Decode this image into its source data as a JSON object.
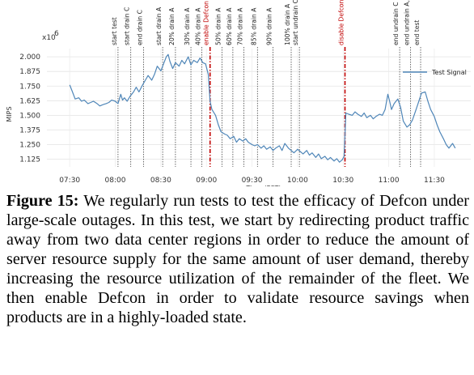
{
  "chart_data": {
    "type": "line",
    "xlabel": "Time (PST)",
    "ylabel": "MIPS",
    "y_multiplier": "x10",
    "y_multiplier_exp": "6",
    "ylim": [
      1.06,
      2.07
    ],
    "xlim": [
      7.25,
      11.9
    ],
    "x_ticks": [
      {
        "value": 7.5,
        "label": "07:30"
      },
      {
        "value": 8.0,
        "label": "08:00"
      },
      {
        "value": 8.5,
        "label": "08:30"
      },
      {
        "value": 9.0,
        "label": "09:00"
      },
      {
        "value": 9.5,
        "label": "09:30"
      },
      {
        "value": 10.0,
        "label": "10:00"
      },
      {
        "value": 10.5,
        "label": "10:30"
      },
      {
        "value": 11.0,
        "label": "11:00"
      },
      {
        "value": 11.5,
        "label": "11:30"
      }
    ],
    "y_ticks": [
      {
        "value": 1.125,
        "label": "1.125"
      },
      {
        "value": 1.25,
        "label": "1.250"
      },
      {
        "value": 1.375,
        "label": "1.375"
      },
      {
        "value": 1.5,
        "label": "1.500"
      },
      {
        "value": 1.625,
        "label": "1.625"
      },
      {
        "value": 1.75,
        "label": "1.750"
      },
      {
        "value": 1.875,
        "label": "1.875"
      },
      {
        "value": 2.0,
        "label": "2.000"
      }
    ],
    "grid": true,
    "legend_position": "top-right",
    "line_color": "#4f86b8",
    "event_line_color": "#444444",
    "highlight_color": "#c00000",
    "series": [
      {
        "name": "Test Signal",
        "points": [
          [
            7.5,
            1.76
          ],
          [
            7.53,
            1.7
          ],
          [
            7.56,
            1.64
          ],
          [
            7.6,
            1.65
          ],
          [
            7.63,
            1.62
          ],
          [
            7.66,
            1.63
          ],
          [
            7.7,
            1.6
          ],
          [
            7.73,
            1.61
          ],
          [
            7.76,
            1.62
          ],
          [
            7.8,
            1.6
          ],
          [
            7.83,
            1.58
          ],
          [
            7.86,
            1.59
          ],
          [
            7.9,
            1.6
          ],
          [
            7.93,
            1.61
          ],
          [
            7.96,
            1.63
          ],
          [
            8.0,
            1.62
          ],
          [
            8.03,
            1.6
          ],
          [
            8.06,
            1.68
          ],
          [
            8.08,
            1.63
          ],
          [
            8.1,
            1.65
          ],
          [
            8.13,
            1.62
          ],
          [
            8.16,
            1.66
          ],
          [
            8.2,
            1.7
          ],
          [
            8.23,
            1.74
          ],
          [
            8.26,
            1.7
          ],
          [
            8.3,
            1.76
          ],
          [
            8.33,
            1.8
          ],
          [
            8.36,
            1.84
          ],
          [
            8.4,
            1.8
          ],
          [
            8.43,
            1.85
          ],
          [
            8.46,
            1.92
          ],
          [
            8.5,
            1.88
          ],
          [
            8.53,
            1.94
          ],
          [
            8.56,
            2.0
          ],
          [
            8.58,
            2.02
          ],
          [
            8.6,
            1.96
          ],
          [
            8.63,
            1.9
          ],
          [
            8.66,
            1.95
          ],
          [
            8.7,
            1.92
          ],
          [
            8.73,
            1.97
          ],
          [
            8.76,
            1.94
          ],
          [
            8.8,
            2.0
          ],
          [
            8.83,
            1.93
          ],
          [
            8.86,
            1.97
          ],
          [
            8.9,
            1.95
          ],
          [
            8.93,
            1.99
          ],
          [
            8.96,
            1.95
          ],
          [
            8.99,
            1.94
          ],
          [
            9.02,
            1.85
          ],
          [
            9.04,
            1.62
          ],
          [
            9.06,
            1.55
          ],
          [
            9.1,
            1.5
          ],
          [
            9.13,
            1.42
          ],
          [
            9.16,
            1.36
          ],
          [
            9.2,
            1.34
          ],
          [
            9.23,
            1.33
          ],
          [
            9.26,
            1.3
          ],
          [
            9.3,
            1.32
          ],
          [
            9.33,
            1.27
          ],
          [
            9.36,
            1.3
          ],
          [
            9.4,
            1.28
          ],
          [
            9.43,
            1.3
          ],
          [
            9.46,
            1.27
          ],
          [
            9.5,
            1.25
          ],
          [
            9.53,
            1.24
          ],
          [
            9.56,
            1.25
          ],
          [
            9.6,
            1.22
          ],
          [
            9.63,
            1.24
          ],
          [
            9.66,
            1.21
          ],
          [
            9.7,
            1.23
          ],
          [
            9.73,
            1.2
          ],
          [
            9.76,
            1.22
          ],
          [
            9.8,
            1.24
          ],
          [
            9.83,
            1.2
          ],
          [
            9.86,
            1.26
          ],
          [
            9.9,
            1.22
          ],
          [
            9.93,
            1.2
          ],
          [
            9.96,
            1.18
          ],
          [
            10.0,
            1.21
          ],
          [
            10.03,
            1.19
          ],
          [
            10.06,
            1.17
          ],
          [
            10.1,
            1.2
          ],
          [
            10.13,
            1.16
          ],
          [
            10.16,
            1.18
          ],
          [
            10.2,
            1.14
          ],
          [
            10.23,
            1.17
          ],
          [
            10.26,
            1.13
          ],
          [
            10.3,
            1.15
          ],
          [
            10.33,
            1.12
          ],
          [
            10.36,
            1.14
          ],
          [
            10.4,
            1.11
          ],
          [
            10.43,
            1.13
          ],
          [
            10.46,
            1.1
          ],
          [
            10.49,
            1.12
          ],
          [
            10.51,
            1.15
          ],
          [
            10.53,
            1.52
          ],
          [
            10.56,
            1.51
          ],
          [
            10.6,
            1.5
          ],
          [
            10.63,
            1.53
          ],
          [
            10.66,
            1.51
          ],
          [
            10.7,
            1.49
          ],
          [
            10.73,
            1.52
          ],
          [
            10.76,
            1.48
          ],
          [
            10.8,
            1.5
          ],
          [
            10.83,
            1.47
          ],
          [
            10.86,
            1.49
          ],
          [
            10.9,
            1.51
          ],
          [
            10.93,
            1.5
          ],
          [
            10.96,
            1.55
          ],
          [
            10.99,
            1.68
          ],
          [
            11.01,
            1.62
          ],
          [
            11.03,
            1.55
          ],
          [
            11.06,
            1.6
          ],
          [
            11.1,
            1.64
          ],
          [
            11.13,
            1.57
          ],
          [
            11.16,
            1.45
          ],
          [
            11.2,
            1.4
          ],
          [
            11.23,
            1.42
          ],
          [
            11.26,
            1.46
          ],
          [
            11.3,
            1.55
          ],
          [
            11.33,
            1.62
          ],
          [
            11.36,
            1.69
          ],
          [
            11.4,
            1.7
          ],
          [
            11.43,
            1.62
          ],
          [
            11.46,
            1.55
          ],
          [
            11.5,
            1.49
          ],
          [
            11.53,
            1.42
          ],
          [
            11.56,
            1.36
          ],
          [
            11.6,
            1.3
          ],
          [
            11.63,
            1.25
          ],
          [
            11.66,
            1.22
          ],
          [
            11.7,
            1.26
          ],
          [
            11.73,
            1.22
          ]
        ]
      }
    ],
    "events": [
      {
        "x": 8.03,
        "label": "start test",
        "highlight": false
      },
      {
        "x": 8.17,
        "label": "start drain C",
        "highlight": false
      },
      {
        "x": 8.31,
        "label": "end drain C",
        "highlight": false
      },
      {
        "x": 8.52,
        "label": "start drain A",
        "highlight": false
      },
      {
        "x": 8.66,
        "label": "20% drain A",
        "highlight": false
      },
      {
        "x": 8.83,
        "label": "30% drain A",
        "highlight": false
      },
      {
        "x": 8.95,
        "label": "40% drain A",
        "highlight": false
      },
      {
        "x": 9.04,
        "label": "enable Defcon L2",
        "highlight": true
      },
      {
        "x": 9.17,
        "label": "50% drain A",
        "highlight": false
      },
      {
        "x": 9.29,
        "label": "60% drain A",
        "highlight": false
      },
      {
        "x": 9.41,
        "label": "70% drain A",
        "highlight": false
      },
      {
        "x": 9.56,
        "label": "85% drain A",
        "highlight": false
      },
      {
        "x": 9.73,
        "label": "90% drain A",
        "highlight": false
      },
      {
        "x": 9.93,
        "label": "100% drain A",
        "highlight": false
      },
      {
        "x": 10.02,
        "label": "start undrain C, A",
        "highlight": false
      },
      {
        "x": 10.52,
        "label": "disable Defcon L2",
        "highlight": true
      },
      {
        "x": 11.12,
        "label": "end undrain C",
        "highlight": false
      },
      {
        "x": 11.24,
        "label": "end undrain A,",
        "highlight": false
      },
      {
        "x": 11.35,
        "label": "end test",
        "highlight": false
      }
    ]
  },
  "caption": {
    "label": "Figure 15:",
    "text": "We regularly run tests to test the efficacy of Defcon under large-scale outages. In this test, we start by redirecting product traffic away from two data center regions in order to reduce the amount of server resource supply for the same amount of user demand, thereby increasing the resource utilization of the remainder of the fleet. We then enable Defcon in order to validate resource savings when products are in a highly-loaded state."
  }
}
